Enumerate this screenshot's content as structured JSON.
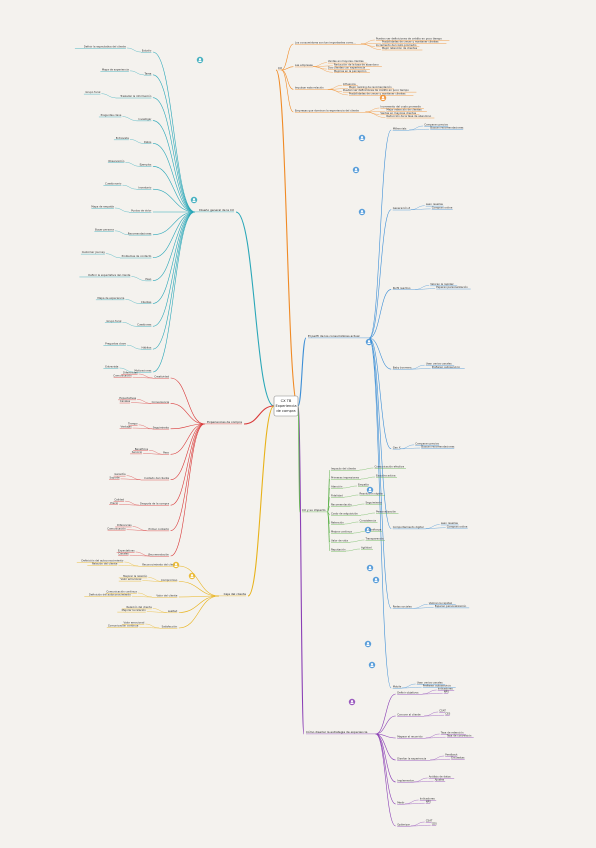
{
  "root": {
    "line1": "CX TB",
    "line2": "Experiencia",
    "line3": "de compra"
  },
  "branches": {
    "orange": {
      "label": "CX",
      "color": "#f08a24",
      "children": [
        "Los consumidores son tan importantes como...",
        "Las empresas",
        "Impulsar esta relación",
        "Empresas que dominan la experiencia del cliente"
      ],
      "leaves": [
        "Pueden ver definiciones de crédito en poco tiempo",
        "Posibilidades de crecer y mantener clientes",
        "Incremento del costo promedio",
        "Mejor retención de clientes",
        "Ventas en mayores clientes",
        "Reducción de la tasa de abandono",
        "Dos clientes con experiencia",
        "Mejoras en la percepción",
        "Influencia",
        "Mejor ranking de recomendación"
      ]
    },
    "cyan": {
      "label": "Diseño general de la CX",
      "color": "#2aa7b8",
      "children": [
        "Estudio",
        "Tarea",
        "Trasladar la información",
        "Investigar",
        "Datos",
        "Ejemplos",
        "Inventario",
        "Puntos de dolor",
        "Recomendaciones",
        "Problemas de contacto",
        "Paso",
        "Clientes",
        "Cuestiones",
        "Hábitos",
        "Motivaciones"
      ],
      "leaves": [
        "Definir la expectativa del cliente",
        "Mapa de experiencia",
        "Grupo focal",
        "Preguntas clave",
        "Entrevista",
        "Observación",
        "Cuestionario",
        "Mapa de empatía",
        "Buyer persona",
        "Customer journey"
      ]
    },
    "red": {
      "label": "Experiencias de compra",
      "color": "#d93a3a",
      "children": [
        "Creatividad",
        "Conveniencia",
        "Seguimiento",
        "Paso",
        "Cuidado del cliente",
        "Después de la compra",
        "Primer contacto",
        "Recomendación"
      ],
      "leaves": [
        "Diferencias",
        "Comunicación",
        "Expectativas",
        "Canales",
        "Tiempo",
        "Ventajas",
        "Beneficios",
        "Servicio",
        "Garantía",
        "Soporte",
        "Calidad",
        "Precio"
      ]
    },
    "yellow": {
      "label": "Caja del cliente",
      "color": "#e8b219",
      "children": [
        "Reconocimiento del cliente",
        "Compromiso",
        "Valor del cliente",
        "Lealtad",
        "Satisfacción"
      ],
      "leaves": [
        "Definición del autoconocimiento",
        "Relación del cliente",
        "Mejorar la relación",
        "Valor emocional",
        "Comunicación continua"
      ]
    },
    "blue": {
      "label": "El perfil de los consumidores actual",
      "color": "#3d8fd6",
      "children": [
        "Millennials",
        "Generación Z",
        "Perfil reactivo",
        "Baby boomers",
        "Gen X",
        "Comportamiento digital",
        "Redes sociales",
        "Mobile"
      ],
      "leaves": [
        "Comparan precios",
        "Buscan recomendaciones",
        "Leen reseñas",
        "Compran online",
        "Valoran la rapidez",
        "Esperan personalización",
        "Usan varios canales",
        "Prefieren autoservicio"
      ]
    },
    "green": {
      "label": "CX y su impacto",
      "color": "#5db24a",
      "children": [
        "Impacto del cliente",
        "Primeras impresiones",
        "Atención",
        "Fidelidad",
        "Recomendación",
        "Costo de adquisición",
        "Retención",
        "Mejora continua",
        "Valor de vida",
        "Reputación"
      ],
      "leaves": [
        "Comunicación efectiva",
        "Escucha activa",
        "Empatía",
        "Resolución rápida",
        "Seguimiento",
        "Personalización",
        "Consistencia",
        "Confianza",
        "Transparencia",
        "Agilidad",
        "Proactividad",
        "Accesibilidad"
      ]
    },
    "purple": {
      "label": "Cómo diseñar la estrategia de experiencia",
      "color": "#8a3fb5",
      "children": [
        "Definir objetivos",
        "Conocer al cliente",
        "Mapear el recorrido",
        "Diseñar la experiencia",
        "Implementar",
        "Medir",
        "Optimizar"
      ],
      "leaves": [
        "Indicadores",
        "NPS",
        "CSAT",
        "CES",
        "Tasa de retención",
        "Tasa de conversión",
        "Feedback",
        "Encuestas",
        "Análisis de datos",
        "Ajustes"
      ]
    }
  }
}
